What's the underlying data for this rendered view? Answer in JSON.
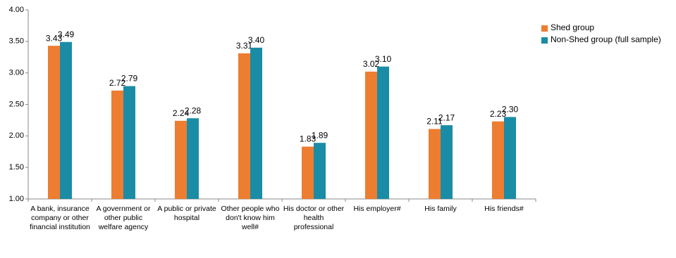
{
  "chart_data": {
    "type": "bar",
    "categories": [
      "A bank, insurance company or other financial institution",
      "A government or other public welfare agency",
      "A public or private hospital",
      "Other people who don't know him well#",
      "His doctor or other health professional",
      "His employer#",
      "His family",
      "His friends#"
    ],
    "series": [
      {
        "name": "Shed group",
        "color": "#ed7d31",
        "values": [
          3.43,
          2.72,
          2.24,
          3.31,
          1.83,
          3.02,
          2.11,
          2.23
        ],
        "value_labels": [
          "3.43",
          "2.72",
          "2.24",
          "3.31",
          "1.83",
          "3.02",
          "2.11",
          "2.23"
        ]
      },
      {
        "name": "Non-Shed group (full sample)",
        "color": "#1a8ca5",
        "values": [
          3.49,
          2.79,
          2.28,
          3.4,
          1.89,
          3.1,
          2.17,
          2.3
        ],
        "value_labels": [
          "3.49",
          "2.79",
          "2.28",
          "3.40",
          "1.89",
          "3.10",
          "2.17",
          "2.30"
        ]
      }
    ],
    "ylim": [
      1,
      4
    ],
    "yticks": [
      {
        "value": 1,
        "label": "1.00"
      },
      {
        "value": 1.5,
        "label": "1.50"
      },
      {
        "value": 2,
        "label": "2.00"
      },
      {
        "value": 2.5,
        "label": "2.50"
      },
      {
        "value": 3,
        "label": "3.00"
      },
      {
        "value": 3.5,
        "label": "3.50"
      },
      {
        "value": 4,
        "label": "4.00"
      }
    ],
    "legend": "right"
  }
}
